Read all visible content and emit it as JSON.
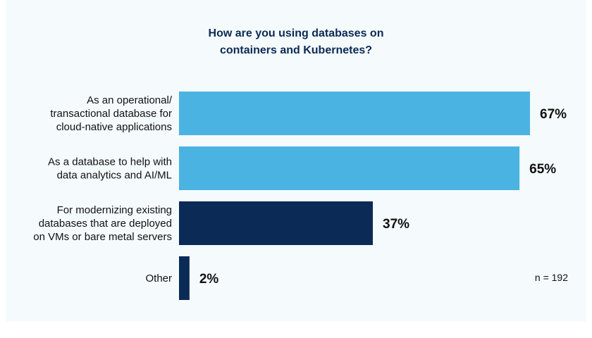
{
  "chart_data": {
    "type": "bar",
    "orientation": "horizontal",
    "title_lines": [
      "How are you using databases on",
      "containers and Kubernetes?"
    ],
    "categories": [
      [
        "As an operational/",
        "transactional database for",
        "cloud-native applications"
      ],
      [
        "As a database to help with",
        "data analytics and AI/ML"
      ],
      [
        "For modernizing existing",
        "databases that are deployed",
        "on VMs or bare metal servers"
      ],
      [
        "Other"
      ]
    ],
    "values": [
      67,
      65,
      37,
      2
    ],
    "data_labels": [
      "67%",
      "65%",
      "37%",
      "2%"
    ],
    "bar_colors": [
      "#4ab3e2",
      "#4ab3e2",
      "#0b2a55",
      "#0b2a55"
    ],
    "xlim": [
      0,
      67
    ],
    "grid": false,
    "note": "n = 192"
  }
}
